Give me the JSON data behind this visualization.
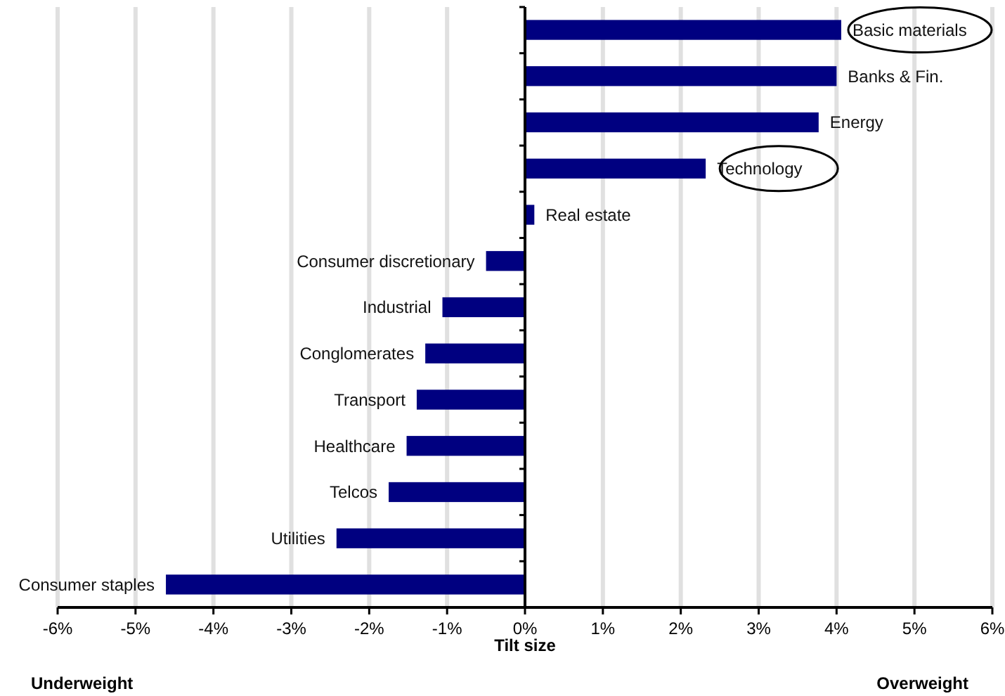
{
  "chart_data": {
    "type": "bar",
    "orientation": "horizontal",
    "xlabel": "Tilt size",
    "categories": [
      "Basic materials",
      "Banks & Fin.",
      "Energy",
      "Technology",
      "Real estate",
      "Consumer discretionary",
      "Industrial",
      "Conglomerates",
      "Transport",
      "Healthcare",
      "Telcos",
      "Utilities",
      "Consumer staples"
    ],
    "values": [
      4.06,
      4.0,
      3.77,
      2.32,
      0.12,
      -0.5,
      -1.06,
      -1.28,
      -1.39,
      -1.52,
      -1.75,
      -2.42,
      -4.61
    ],
    "color": "#000080",
    "xlim": [
      -6,
      6
    ],
    "xticks": [
      {
        "value": -6,
        "label": "-6%"
      },
      {
        "value": -5,
        "label": "-5%"
      },
      {
        "value": -4,
        "label": "-4%"
      },
      {
        "value": -3,
        "label": "-3%"
      },
      {
        "value": -2,
        "label": "-2%"
      },
      {
        "value": -1,
        "label": "-1%"
      },
      {
        "value": 0,
        "label": "0%"
      },
      {
        "value": 1,
        "label": "1%"
      },
      {
        "value": 2,
        "label": "2%"
      },
      {
        "value": 3,
        "label": "3%"
      },
      {
        "value": 4,
        "label": "4%"
      },
      {
        "value": 5,
        "label": "5%"
      },
      {
        "value": 6,
        "label": "6%"
      }
    ],
    "grid": "x",
    "annotations": [
      "Underweight",
      "Overweight"
    ]
  }
}
